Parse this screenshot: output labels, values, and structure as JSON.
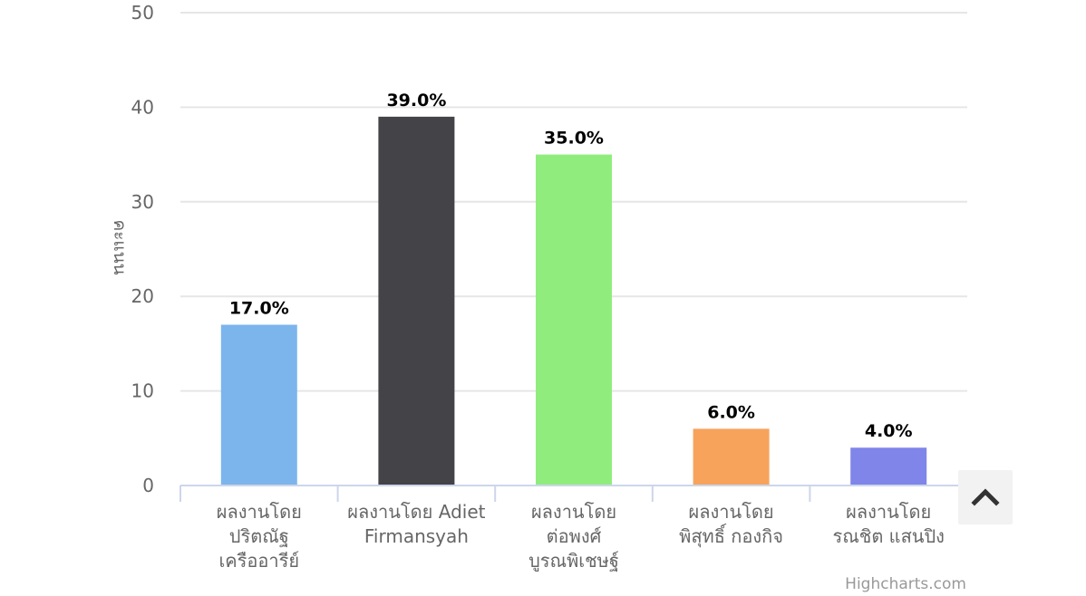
{
  "chart_data": {
    "type": "bar",
    "title": "",
    "xlabel": "",
    "ylabel": "คะแนน",
    "ylim": [
      0,
      50
    ],
    "yticks": [
      0,
      10,
      20,
      30,
      40,
      50
    ],
    "grid": true,
    "categories": [
      [
        "ผลงานโดย",
        "ปริตณัฐ",
        "เครืออารีย์"
      ],
      [
        "ผลงานโดย Adiet",
        "Firmansyah"
      ],
      [
        "ผลงานโดย",
        "ต่อพงศ์",
        "บูรณพิเชษฐ์"
      ],
      [
        "ผลงานโดย",
        "พิสุทธิ์ กองกิจ"
      ],
      [
        "ผลงานโดย",
        "รณชิต แสนปิง"
      ]
    ],
    "values": [
      17,
      39,
      35,
      6,
      4
    ],
    "data_labels": [
      "17.0%",
      "39.0%",
      "35.0%",
      "6.0%",
      "4.0%"
    ],
    "colors": [
      "#7cb5ec",
      "#434348",
      "#90ed7d",
      "#f7a35c",
      "#8085e9"
    ]
  },
  "credits": {
    "text": "Highcharts.com"
  },
  "scroll_top": {
    "icon": "chevron-up-icon"
  }
}
